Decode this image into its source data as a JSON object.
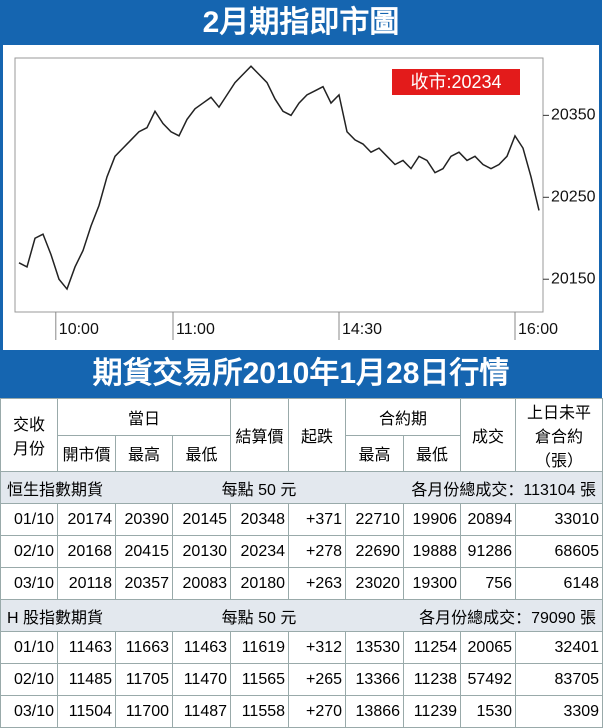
{
  "chart_data": {
    "type": "line",
    "title": "2月期指即市圖",
    "values": [
      20170,
      20165,
      20200,
      20205,
      20180,
      20150,
      20138,
      20165,
      20185,
      20215,
      20240,
      20275,
      20300,
      20310,
      20320,
      20330,
      20335,
      20355,
      20340,
      20330,
      20325,
      20345,
      20358,
      20365,
      20372,
      20360,
      20375,
      20390,
      20400,
      20410,
      20400,
      20390,
      20370,
      20355,
      20350,
      20365,
      20375,
      20380,
      20385,
      20365,
      20375,
      20330,
      20320,
      20315,
      20305,
      20310,
      20300,
      20290,
      20295,
      20285,
      20300,
      20295,
      20280,
      20285,
      20300,
      20305,
      20295,
      20300,
      20290,
      20285,
      20290,
      20300,
      20325,
      20310,
      20275,
      20234
    ],
    "color": "#222222",
    "xlim": [
      -0.5,
      65.5
    ],
    "xticks": [
      {
        "value": 4.6,
        "label": "10:00"
      },
      {
        "value": 19.25,
        "label": "11:00"
      },
      {
        "value": 40,
        "label": "14:30"
      },
      {
        "value": 62,
        "label": "16:00"
      }
    ],
    "ylim": [
      20110,
      20420
    ],
    "yticks": [
      20150,
      20250,
      20350
    ],
    "annotation": "收市:20234"
  },
  "table": {
    "title": "期貨交易所2010年1月28日行情",
    "header": {
      "month": "交收月份",
      "day": "當日",
      "settle": "結算價",
      "change": "起跌",
      "contract": "合約期",
      "volume": "成交",
      "oi": "上日未平倉合約（張）",
      "sub": [
        "開市價",
        "最高",
        "最低",
        "最高",
        "最低"
      ]
    },
    "sections": [
      {
        "name": "恒生指數期貨",
        "unit": "每點 50 元",
        "total_label": "各月份總成交：",
        "total": "113104 張",
        "rows": [
          [
            "01/10",
            "20174",
            "20390",
            "20145",
            "20348",
            "+371",
            "22710",
            "19906",
            "20894",
            "33010"
          ],
          [
            "02/10",
            "20168",
            "20415",
            "20130",
            "20234",
            "+278",
            "22690",
            "19888",
            "91286",
            "68605"
          ],
          [
            "03/10",
            "20118",
            "20357",
            "20083",
            "20180",
            "+263",
            "23020",
            "19300",
            "756",
            "6148"
          ]
        ]
      },
      {
        "name": "H 股指數期貨",
        "unit": "每點 50 元",
        "total_label": "各月份總成交：",
        "total": "79090 張",
        "rows": [
          [
            "01/10",
            "11463",
            "11663",
            "11463",
            "11619",
            "+312",
            "13530",
            "11254",
            "20065",
            "32401"
          ],
          [
            "02/10",
            "11485",
            "11705",
            "11470",
            "11565",
            "+265",
            "13366",
            "11238",
            "57492",
            "83705"
          ],
          [
            "03/10",
            "11504",
            "11700",
            "11487",
            "11558",
            "+270",
            "13866",
            "11239",
            "1530",
            "3309"
          ]
        ]
      }
    ]
  }
}
